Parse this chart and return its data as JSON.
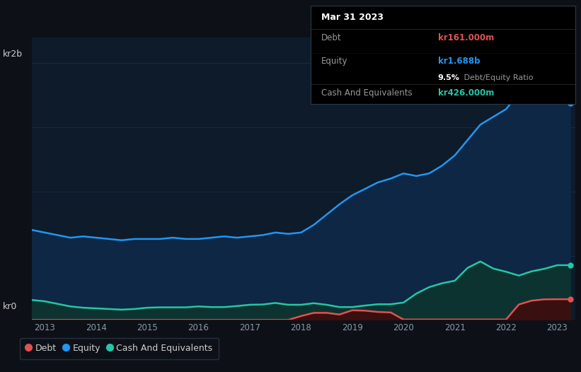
{
  "background_color": "#0d1117",
  "plot_bg_color": "#0d1b2a",
  "ylabel_top": "kr2b",
  "ylabel_bottom": "kr0",
  "x_ticks": [
    2013,
    2014,
    2015,
    2016,
    2017,
    2018,
    2019,
    2020,
    2021,
    2022,
    2023
  ],
  "equity_color": "#2196f3",
  "debt_color": "#e05252",
  "cash_color": "#26c6a6",
  "equity_fill": "#0d2744",
  "cash_fill": "#0d3330",
  "debt_fill": "#3a0f0f",
  "grid_color": "#1a2a3a",
  "annotation": {
    "date": "Mar 31 2023",
    "debt_label": "Debt",
    "debt_value": "kr161.000m",
    "equity_label": "Equity",
    "equity_value": "kr1.688b",
    "ratio_bold": "9.5%",
    "ratio_rest": " Debt/Equity Ratio",
    "cash_label": "Cash And Equivalents",
    "cash_value": "kr426.000m"
  },
  "equity_x": [
    2012.75,
    2013.0,
    2013.25,
    2013.5,
    2013.75,
    2014.0,
    2014.25,
    2014.5,
    2014.75,
    2015.0,
    2015.25,
    2015.5,
    2015.75,
    2016.0,
    2016.25,
    2016.5,
    2016.75,
    2017.0,
    2017.25,
    2017.5,
    2017.75,
    2018.0,
    2018.25,
    2018.5,
    2018.75,
    2019.0,
    2019.25,
    2019.5,
    2019.75,
    2020.0,
    2020.25,
    2020.5,
    2020.75,
    2021.0,
    2021.25,
    2021.5,
    2021.75,
    2022.0,
    2022.25,
    2022.5,
    2022.75,
    2023.0,
    2023.25
  ],
  "equity_y": [
    0.7,
    0.68,
    0.66,
    0.64,
    0.65,
    0.64,
    0.63,
    0.62,
    0.63,
    0.63,
    0.63,
    0.64,
    0.63,
    0.63,
    0.64,
    0.65,
    0.64,
    0.65,
    0.66,
    0.68,
    0.67,
    0.68,
    0.74,
    0.82,
    0.9,
    0.97,
    1.02,
    1.07,
    1.1,
    1.14,
    1.12,
    1.14,
    1.2,
    1.28,
    1.4,
    1.52,
    1.58,
    1.64,
    1.76,
    1.93,
    2.08,
    2.12,
    1.688
  ],
  "debt_x": [
    2012.75,
    2013.0,
    2013.25,
    2013.5,
    2013.75,
    2014.0,
    2014.25,
    2014.5,
    2014.75,
    2015.0,
    2015.25,
    2015.5,
    2015.75,
    2016.0,
    2016.25,
    2016.5,
    2016.75,
    2017.0,
    2017.25,
    2017.5,
    2017.75,
    2018.0,
    2018.25,
    2018.5,
    2018.75,
    2019.0,
    2019.25,
    2019.5,
    2019.75,
    2020.0,
    2020.25,
    2020.5,
    2020.75,
    2021.0,
    2021.25,
    2021.5,
    2021.75,
    2022.0,
    2022.25,
    2022.5,
    2022.75,
    2023.0,
    2023.25
  ],
  "debt_y": [
    0.0,
    0.0,
    0.0,
    0.0,
    0.0,
    0.0,
    0.0,
    0.0,
    0.0,
    0.0,
    0.0,
    0.0,
    0.0,
    0.0,
    0.0,
    0.0,
    0.0,
    0.0,
    0.0,
    0.0,
    0.0,
    0.03,
    0.055,
    0.055,
    0.042,
    0.075,
    0.072,
    0.062,
    0.058,
    0.003,
    0.003,
    0.003,
    0.003,
    0.003,
    0.003,
    0.003,
    0.003,
    0.003,
    0.12,
    0.15,
    0.16,
    0.161,
    0.161
  ],
  "cash_x": [
    2012.75,
    2013.0,
    2013.25,
    2013.5,
    2013.75,
    2014.0,
    2014.25,
    2014.5,
    2014.75,
    2015.0,
    2015.25,
    2015.5,
    2015.75,
    2016.0,
    2016.25,
    2016.5,
    2016.75,
    2017.0,
    2017.25,
    2017.5,
    2017.75,
    2018.0,
    2018.25,
    2018.5,
    2018.75,
    2019.0,
    2019.25,
    2019.5,
    2019.75,
    2020.0,
    2020.25,
    2020.5,
    2020.75,
    2021.0,
    2021.25,
    2021.5,
    2021.75,
    2022.0,
    2022.25,
    2022.5,
    2022.75,
    2023.0,
    2023.25
  ],
  "cash_y": [
    0.155,
    0.145,
    0.125,
    0.105,
    0.095,
    0.09,
    0.085,
    0.08,
    0.085,
    0.095,
    0.098,
    0.098,
    0.098,
    0.105,
    0.1,
    0.1,
    0.108,
    0.118,
    0.12,
    0.132,
    0.118,
    0.118,
    0.13,
    0.118,
    0.1,
    0.1,
    0.112,
    0.122,
    0.122,
    0.135,
    0.205,
    0.255,
    0.285,
    0.305,
    0.405,
    0.455,
    0.4,
    0.375,
    0.345,
    0.378,
    0.398,
    0.426,
    0.426
  ],
  "ylim": [
    0,
    2.2
  ],
  "xlim": [
    2012.75,
    2023.35
  ],
  "legend_items": [
    {
      "label": "Debt",
      "color": "#e05252"
    },
    {
      "label": "Equity",
      "color": "#2196f3"
    },
    {
      "label": "Cash And Equivalents",
      "color": "#26c6a6"
    }
  ]
}
